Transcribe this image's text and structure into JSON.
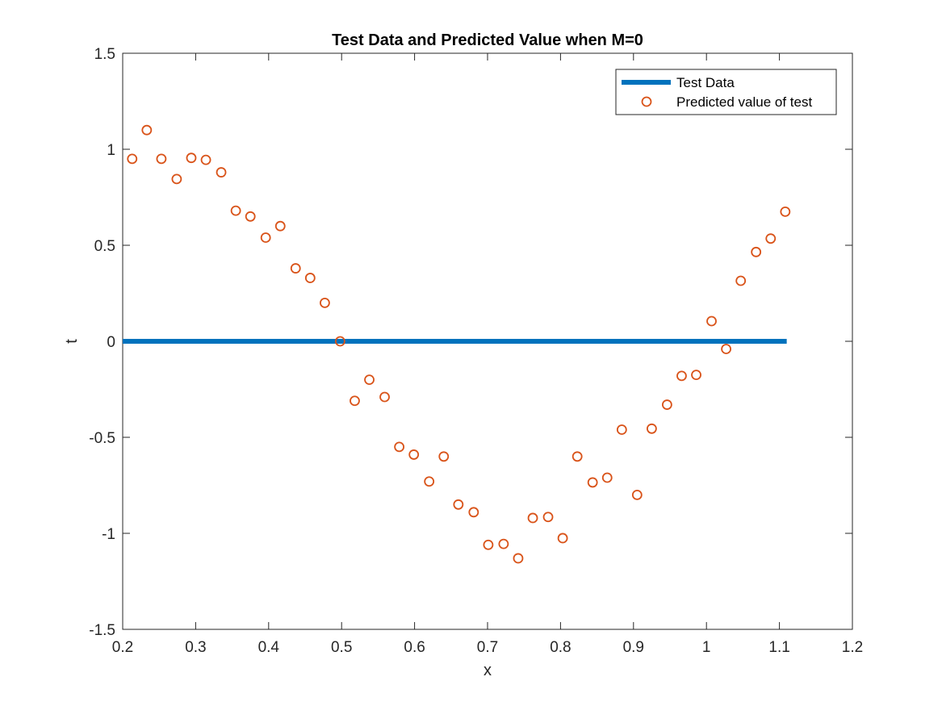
{
  "chart_data": {
    "type": "line",
    "title": "Test Data and Predicted Value when M=0",
    "xlabel": "x",
    "ylabel": "t",
    "xlim": [
      0.2,
      1.2
    ],
    "ylim": [
      -1.5,
      1.5
    ],
    "xticks": [
      0.2,
      0.3,
      0.4,
      0.5,
      0.6,
      0.7,
      0.8,
      0.9,
      1,
      1.1,
      1.2
    ],
    "xtick_labels": [
      "0.2",
      "0.3",
      "0.4",
      "0.5",
      "0.6",
      "0.7",
      "0.8",
      "0.9",
      "1",
      "1.1",
      "1.2"
    ],
    "yticks": [
      -1.5,
      -1,
      -0.5,
      0,
      0.5,
      1,
      1.5
    ],
    "ytick_labels": [
      "-1.5",
      "-1",
      "-0.5",
      "0",
      "0.5",
      "1",
      "1.5"
    ],
    "grid": false,
    "legend_position": "top-right",
    "series": [
      {
        "name": "Test Data",
        "style": "line",
        "color": "#0072BD",
        "x": [
          0.2,
          1.11
        ],
        "y": [
          0,
          0
        ]
      },
      {
        "name": "Predicted value of test",
        "style": "scatter",
        "marker": "circle",
        "color": "#D95319",
        "x": [
          0.213,
          0.233,
          0.253,
          0.274,
          0.294,
          0.314,
          0.335,
          0.355,
          0.375,
          0.396,
          0.416,
          0.437,
          0.457,
          0.477,
          0.498,
          0.518,
          0.538,
          0.559,
          0.579,
          0.599,
          0.62,
          0.64,
          0.66,
          0.681,
          0.701,
          0.722,
          0.742,
          0.762,
          0.783,
          0.803,
          0.823,
          0.844,
          0.864,
          0.884,
          0.905,
          0.925,
          0.946,
          0.966,
          0.986,
          1.007,
          1.027,
          1.047,
          1.068,
          1.088,
          1.108
        ],
        "y": [
          0.95,
          1.1,
          0.95,
          0.845,
          0.955,
          0.945,
          0.88,
          0.68,
          0.65,
          0.54,
          0.6,
          0.38,
          0.33,
          0.2,
          0,
          -0.31,
          -0.2,
          -0.29,
          -0.55,
          -0.59,
          -0.73,
          -0.6,
          -0.85,
          -0.89,
          -1.06,
          -1.055,
          -1.13,
          -0.92,
          -0.915,
          -1.025,
          -0.6,
          -0.735,
          -0.71,
          -0.46,
          -0.8,
          -0.455,
          -0.33,
          -0.18,
          -0.175,
          0.105,
          -0.04,
          0.315,
          0.465,
          0.535,
          0.675
        ]
      }
    ]
  }
}
